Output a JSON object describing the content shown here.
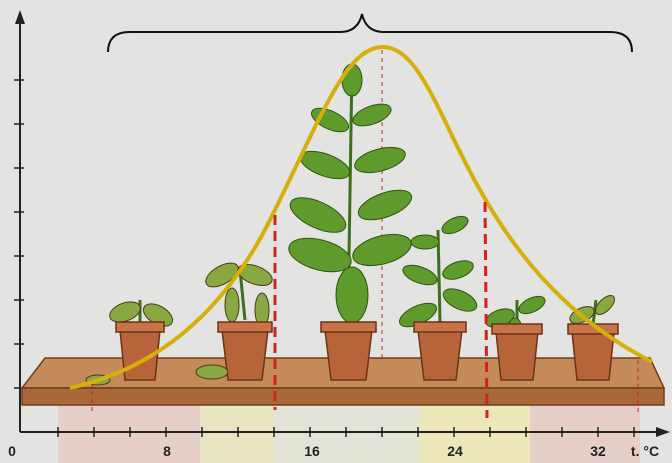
{
  "axis": {
    "x_labels": [
      "0",
      "8",
      "16",
      "24",
      "32"
    ],
    "unit": "t. °C"
  }
}
